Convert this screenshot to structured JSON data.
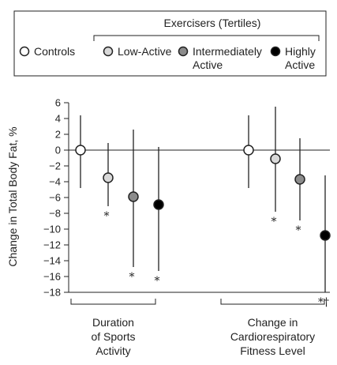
{
  "chart_data": {
    "type": "scatter",
    "legend": {
      "header": "Exercisers (Tertiles)",
      "placement": "top",
      "entries": [
        {
          "label": "Controls",
          "label_lines": [
            "Controls"
          ],
          "fill": "#ffffff"
        },
        {
          "label": "Low-Active",
          "label_lines": [
            "Low-Active"
          ],
          "fill": "#d9d9d9"
        },
        {
          "label": "Intermediately Active",
          "label_lines": [
            "Intermediately",
            "Active"
          ],
          "fill": "#8c8c8c"
        },
        {
          "label": "Highly Active",
          "label_lines": [
            "Highly",
            "Active"
          ],
          "fill": "#000000"
        }
      ]
    },
    "ylabel": "Change in Total Body Fat, %",
    "xlabel": "",
    "ylim": [
      -18,
      6
    ],
    "yticks": [
      6,
      4,
      2,
      0,
      -2,
      -4,
      -6,
      -8,
      -10,
      -12,
      -14,
      -16,
      -18
    ],
    "groups": [
      {
        "label": "Duration of Sports Activity",
        "label_lines": [
          "Duration",
          "of Sports",
          "Activity"
        ],
        "points": [
          {
            "series": "Controls",
            "value": 0,
            "low": -4.8,
            "high": 4.4,
            "annotation": ""
          },
          {
            "series": "Low-Active",
            "value": -3.5,
            "low": -7.1,
            "high": 0.9,
            "annotation": "*"
          },
          {
            "series": "Intermediately Active",
            "value": -5.9,
            "low": -14.8,
            "high": 2.6,
            "annotation": "*"
          },
          {
            "series": "Highly Active",
            "value": -6.9,
            "low": -15.3,
            "high": 0.4,
            "annotation": "*"
          }
        ]
      },
      {
        "label": "Change in Cardiorespiratory Fitness Level",
        "label_lines": [
          "Change in",
          "Cardiorespiratory",
          "Fitness Level"
        ],
        "points": [
          {
            "series": "Controls",
            "value": 0,
            "low": -4.8,
            "high": 4.4,
            "annotation": ""
          },
          {
            "series": "Low-Active",
            "value": -1.1,
            "low": -7.8,
            "high": 5.5,
            "annotation": "*"
          },
          {
            "series": "Intermediately Active",
            "value": -3.7,
            "low": -8.9,
            "high": 1.5,
            "annotation": "*"
          },
          {
            "series": "Highly Active",
            "value": -10.8,
            "low": -18,
            "high": -3.2,
            "annotation": "*†"
          }
        ]
      }
    ],
    "reference_line": 0,
    "grid": false
  }
}
